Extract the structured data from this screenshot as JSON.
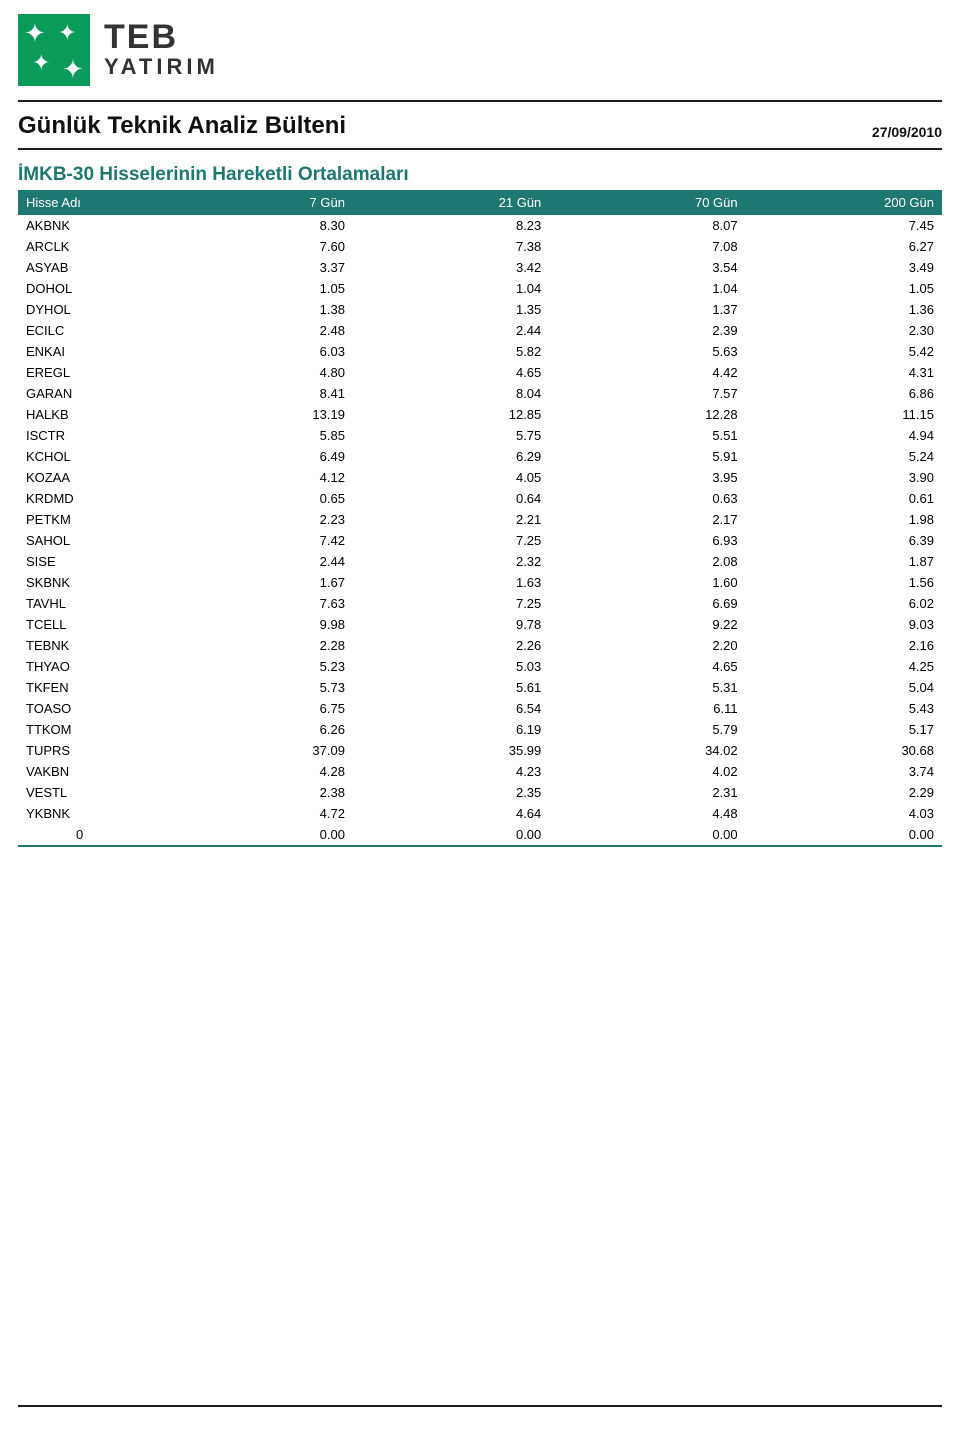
{
  "brand": {
    "name": "TEB",
    "subname": "YATIRIM"
  },
  "page_title": "Günlük Teknik Analiz Bülteni",
  "date": "27/09/2010",
  "section_title": "İMKB-30 Hisselerinin Hareketli Ortalamaları",
  "colors": {
    "header_bg": "#1e7770",
    "header_fg": "#ffffff",
    "section_title": "#1e7770",
    "rule": "#1f1f1f",
    "logo_square": "#0a9b5a",
    "text": "#000000",
    "background": "#ffffff"
  },
  "table": {
    "columns": [
      "Hisse Adı",
      "7 Gün",
      "21 Gün",
      "70 Gün",
      "200 Gün"
    ],
    "col_types": [
      "sym",
      "num",
      "num",
      "num",
      "num"
    ],
    "rows": [
      [
        "AKBNK",
        "8.30",
        "8.23",
        "8.07",
        "7.45"
      ],
      [
        "ARCLK",
        "7.60",
        "7.38",
        "7.08",
        "6.27"
      ],
      [
        "ASYAB",
        "3.37",
        "3.42",
        "3.54",
        "3.49"
      ],
      [
        "DOHOL",
        "1.05",
        "1.04",
        "1.04",
        "1.05"
      ],
      [
        "DYHOL",
        "1.38",
        "1.35",
        "1.37",
        "1.36"
      ],
      [
        "ECILC",
        "2.48",
        "2.44",
        "2.39",
        "2.30"
      ],
      [
        "ENKAI",
        "6.03",
        "5.82",
        "5.63",
        "5.42"
      ],
      [
        "EREGL",
        "4.80",
        "4.65",
        "4.42",
        "4.31"
      ],
      [
        "GARAN",
        "8.41",
        "8.04",
        "7.57",
        "6.86"
      ],
      [
        "HALKB",
        "13.19",
        "12.85",
        "12.28",
        "11.15"
      ],
      [
        "ISCTR",
        "5.85",
        "5.75",
        "5.51",
        "4.94"
      ],
      [
        "KCHOL",
        "6.49",
        "6.29",
        "5.91",
        "5.24"
      ],
      [
        "KOZAA",
        "4.12",
        "4.05",
        "3.95",
        "3.90"
      ],
      [
        "KRDMD",
        "0.65",
        "0.64",
        "0.63",
        "0.61"
      ],
      [
        "PETKM",
        "2.23",
        "2.21",
        "2.17",
        "1.98"
      ],
      [
        "SAHOL",
        "7.42",
        "7.25",
        "6.93",
        "6.39"
      ],
      [
        "SISE",
        "2.44",
        "2.32",
        "2.08",
        "1.87"
      ],
      [
        "SKBNK",
        "1.67",
        "1.63",
        "1.60",
        "1.56"
      ],
      [
        "TAVHL",
        "7.63",
        "7.25",
        "6.69",
        "6.02"
      ],
      [
        "TCELL",
        "9.98",
        "9.78",
        "9.22",
        "9.03"
      ],
      [
        "TEBNK",
        "2.28",
        "2.26",
        "2.20",
        "2.16"
      ],
      [
        "THYAO",
        "5.23",
        "5.03",
        "4.65",
        "4.25"
      ],
      [
        "TKFEN",
        "5.73",
        "5.61",
        "5.31",
        "5.04"
      ],
      [
        "TOASO",
        "6.75",
        "6.54",
        "6.11",
        "5.43"
      ],
      [
        "TTKOM",
        "6.26",
        "6.19",
        "5.79",
        "5.17"
      ],
      [
        "TUPRS",
        "37.09",
        "35.99",
        "34.02",
        "30.68"
      ],
      [
        "VAKBN",
        "4.28",
        "4.23",
        "4.02",
        "3.74"
      ],
      [
        "VESTL",
        "2.38",
        "2.35",
        "2.31",
        "2.29"
      ],
      [
        "YKBNK",
        "4.72",
        "4.64",
        "4.48",
        "4.03"
      ],
      [
        "0",
        "0.00",
        "0.00",
        "0.00",
        "0.00"
      ]
    ],
    "indent_last_row": true
  }
}
